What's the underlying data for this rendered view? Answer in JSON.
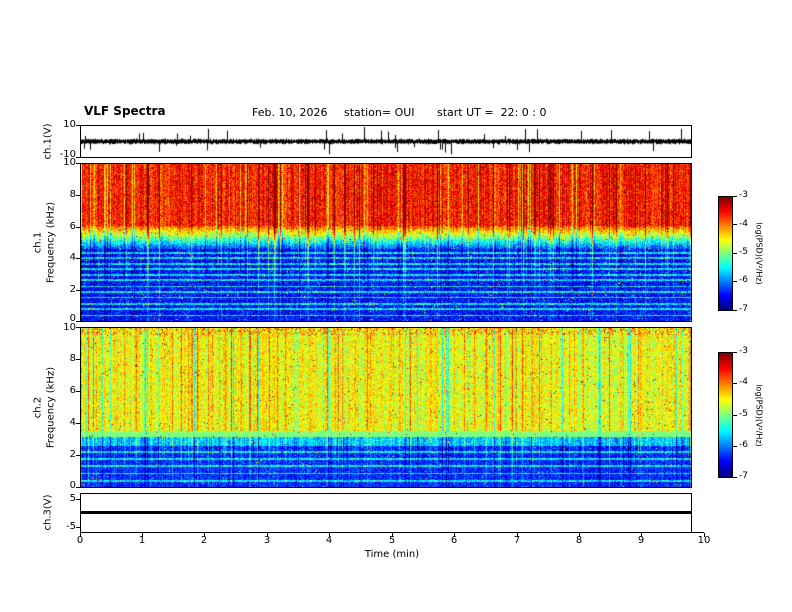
{
  "figure": {
    "title": "VLF Spectra",
    "date": "Feb. 10, 2026",
    "station": "station= OUI",
    "start_ut": "start UT =  22: 0 : 0"
  },
  "panels": {
    "waveform1": {
      "label": "ch.1(V)",
      "yticks": [
        "10",
        "-10"
      ]
    },
    "spect1": {
      "channel": "ch.1",
      "axis": "Frequency (kHz)",
      "yticks": [
        "10",
        "8",
        "6",
        "4",
        "2",
        "0"
      ]
    },
    "spect2": {
      "channel": "ch.2",
      "axis": "Frequency (kHz)",
      "yticks": [
        "10",
        "8",
        "6",
        "4",
        "2",
        "0"
      ]
    },
    "waveform3": {
      "label": "ch.3(V)",
      "yticks": [
        "5",
        "-5"
      ]
    }
  },
  "xaxis": {
    "label": "Time (min)",
    "ticks": [
      "0",
      "1",
      "2",
      "3",
      "4",
      "5",
      "6",
      "7",
      "8",
      "9",
      "10"
    ]
  },
  "colorbar": {
    "label": "log(PSD)(V²/Hz)",
    "ticks": [
      "-3",
      "-4",
      "-5",
      "-6",
      "-7"
    ]
  },
  "chart_data": [
    {
      "panel": "ch1_waveform",
      "type": "line",
      "ylabel": "ch.1(V)",
      "ylim": [
        -10,
        10
      ],
      "xlim_min": [
        0,
        9.8
      ],
      "series_description": "broadband noise around 0 V (~±2 V) with impulsive spikes up to ±9 V throughout the record",
      "noise_v": 1.1,
      "spike_rate": 0.035,
      "spike_v_max": 8.5
    },
    {
      "panel": "ch1_spectrogram",
      "type": "heatmap",
      "ylabel": "ch.1 Frequency (kHz)",
      "xlabel": "Time (min)",
      "ylim_khz": [
        0,
        10
      ],
      "xlim_min": [
        0,
        9.8
      ],
      "zlim_log_psd": [
        -7,
        -3
      ],
      "colormap": "jet",
      "bands": [
        {
          "f_lo": 6.05,
          "f_hi": 10.0,
          "level": -3.6
        },
        {
          "f_lo": 4.6,
          "f_hi": 6.05,
          "level_lo": -6.2,
          "level_hi": -3.8
        },
        {
          "f_lo": 0.0,
          "f_hi": 4.6,
          "level": -6.45
        }
      ],
      "lines_khz": [
        0.35,
        0.75,
        1.1,
        1.5,
        1.85,
        2.2,
        2.6,
        2.95,
        3.3,
        3.65,
        4.0,
        4.35
      ],
      "line_boost": 1.2,
      "streak_rate": 0.12,
      "streak_boost": 1.0,
      "taper_full_above_khz": 5.5,
      "taper_min": 0.3,
      "noise": 0.42,
      "speckle_rate": 0.012
    },
    {
      "panel": "ch2_spectrogram",
      "type": "heatmap",
      "ylabel": "ch.2 Frequency (kHz)",
      "xlabel": "Time (min)",
      "ylim_khz": [
        0,
        10
      ],
      "xlim_min": [
        0,
        9.8
      ],
      "zlim_log_psd": [
        -7,
        -3
      ],
      "colormap": "jet",
      "bands": [
        {
          "f_lo": 3.55,
          "f_hi": 10.0,
          "level": -4.55
        },
        {
          "f_lo": 3.15,
          "f_hi": 3.55,
          "level": -5.0,
          "noise": 0.1,
          "streak_mult": 0.2
        },
        {
          "f_lo": 2.6,
          "f_hi": 3.15,
          "level": -5.7
        },
        {
          "f_lo": 0.0,
          "f_hi": 2.6,
          "level": -6.35
        }
      ],
      "lines_khz": [
        0.4,
        0.85,
        1.3,
        1.75,
        2.2
      ],
      "line_boost": 1.1,
      "streak_rate": 0.1,
      "streak_boost": 0.55,
      "taper_full_above_khz": 2.5,
      "taper_min": 0.5,
      "noise": 0.38,
      "speckle_rate": 0.008,
      "top_speckle": {
        "f_min": 9.55,
        "rate": 0.18,
        "level": -3.5
      }
    },
    {
      "panel": "ch3_waveform",
      "type": "line",
      "ylabel": "ch.3(V)",
      "ylim": [
        -5,
        5
      ],
      "xlim_min": [
        0,
        9.8
      ],
      "value_const_v": 0,
      "series_description": "constant 0 V flat thick line for the whole record"
    }
  ]
}
